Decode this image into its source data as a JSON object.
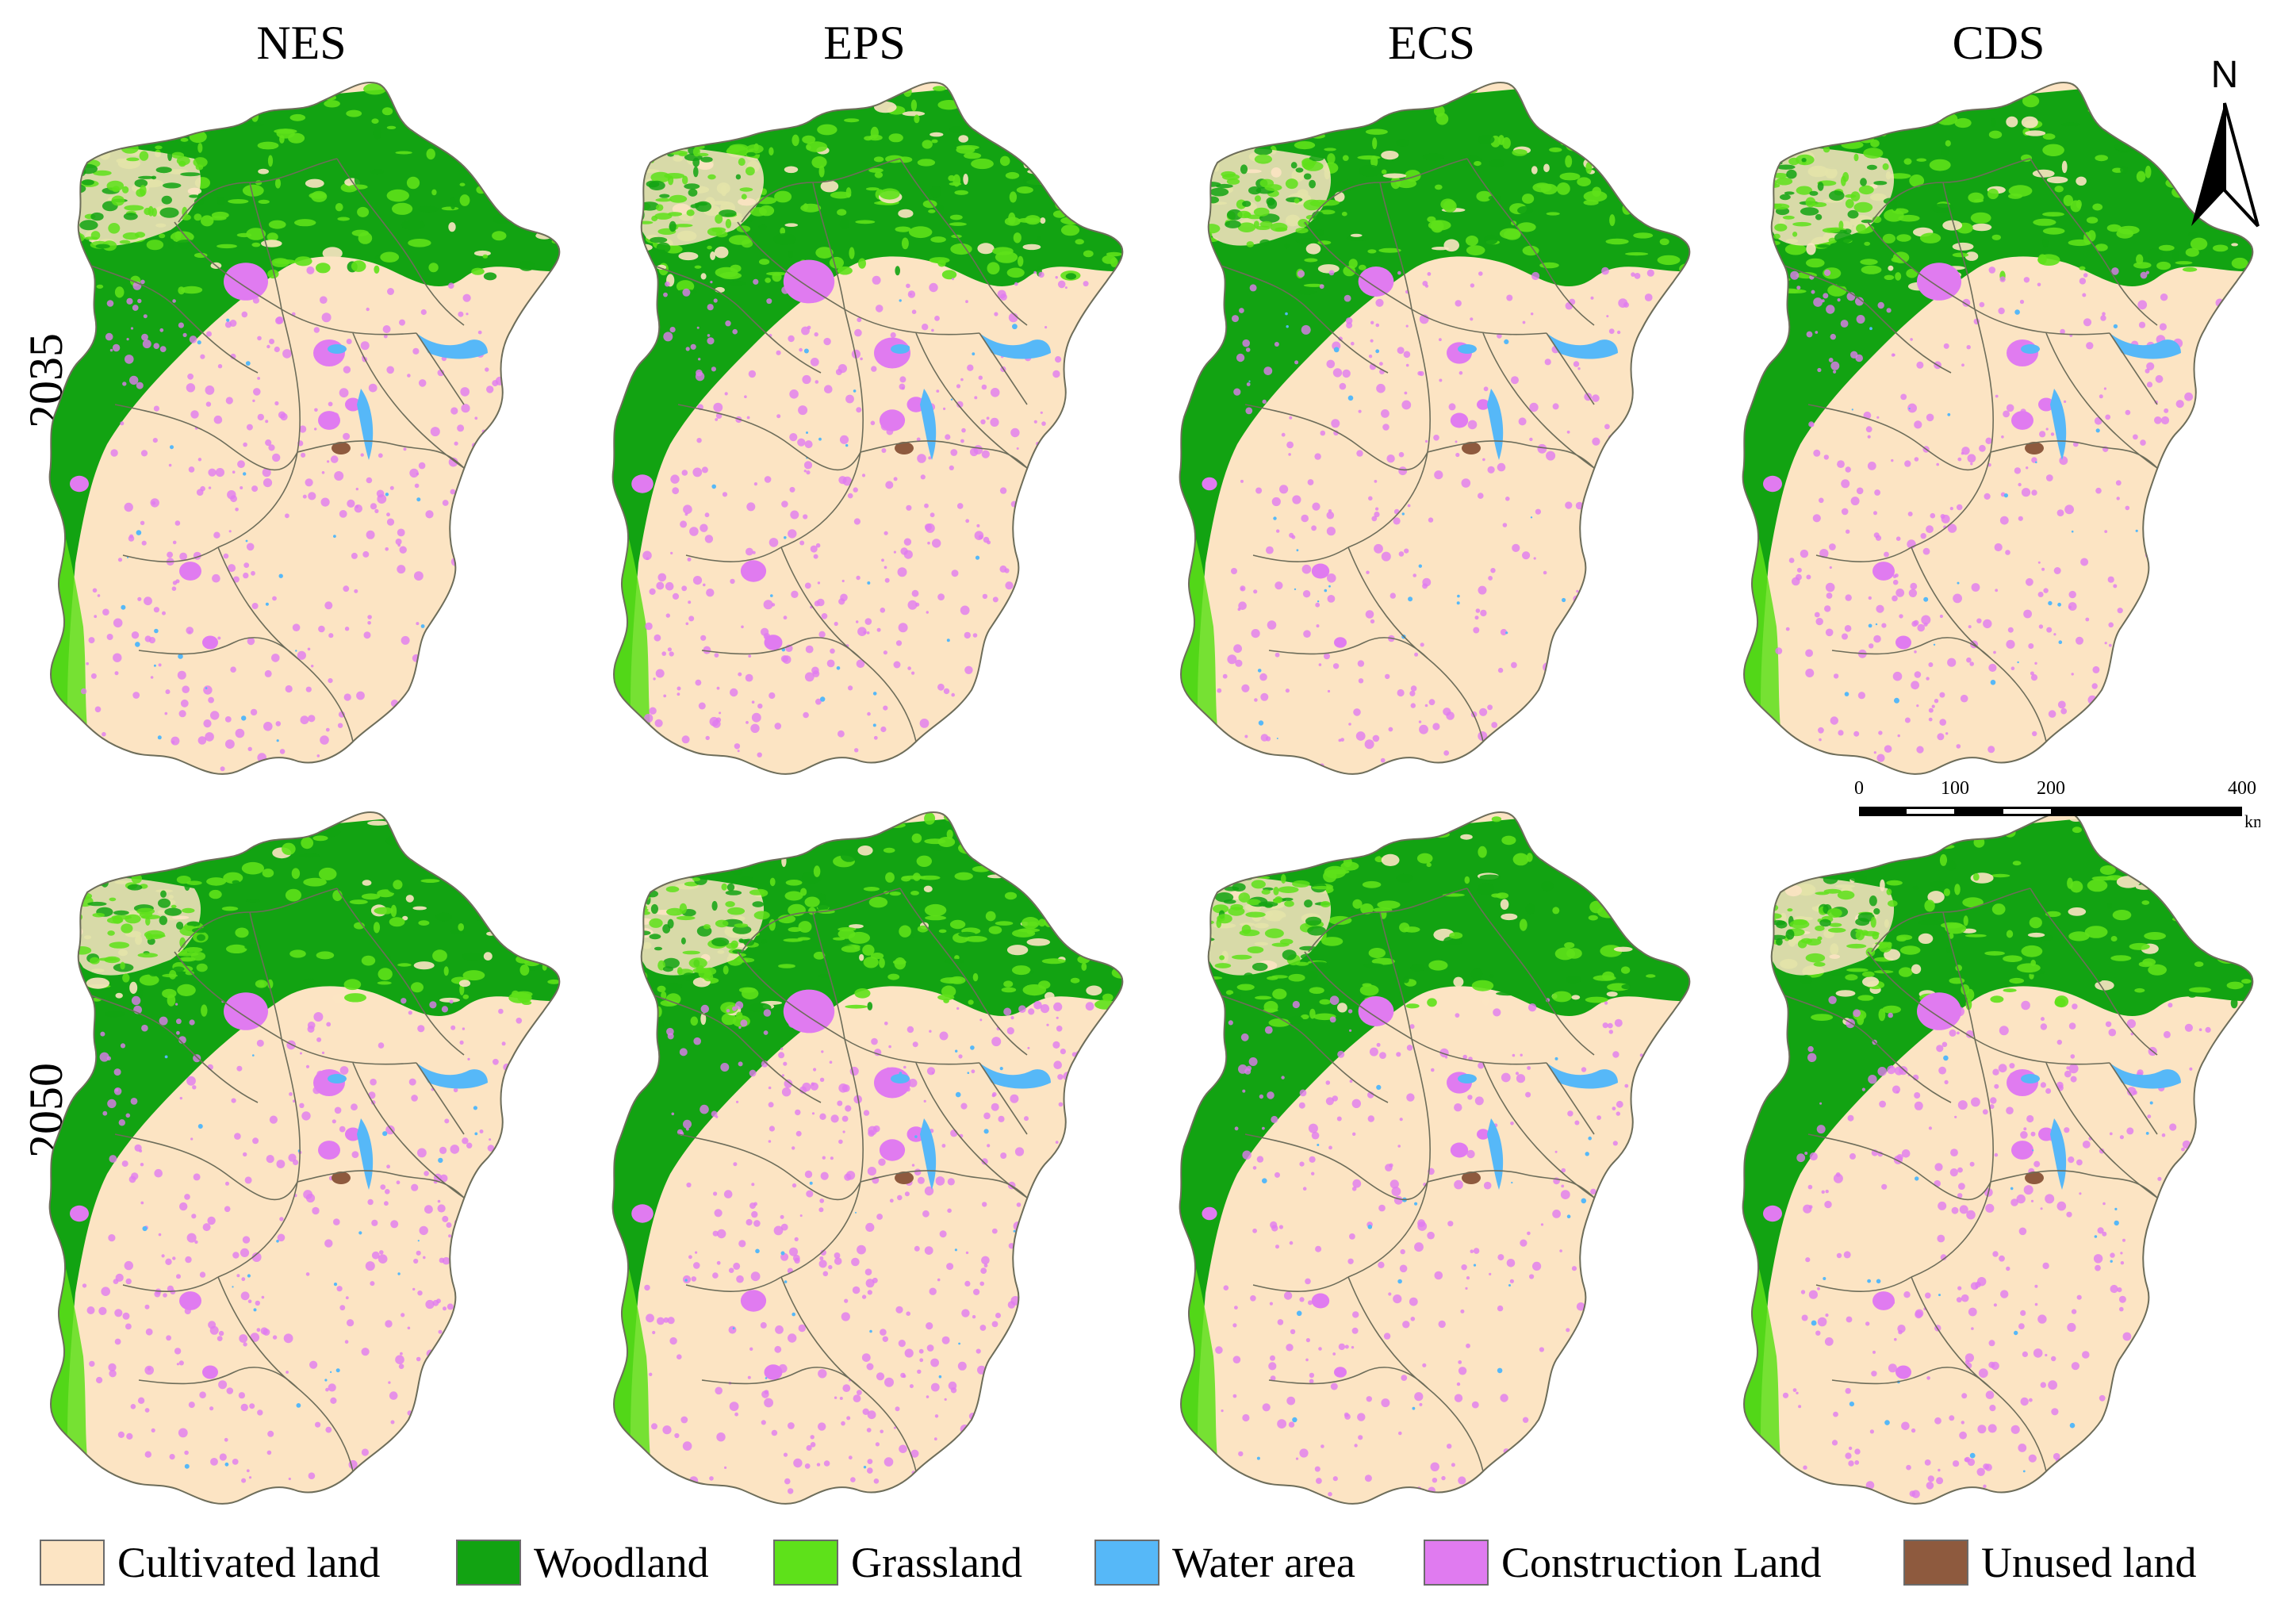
{
  "scenarios": [
    "NES",
    "EPS",
    "ECS",
    "CDS"
  ],
  "years": [
    "2035",
    "2050"
  ],
  "legend": [
    {
      "label": "Cultivated land",
      "color": "#FCE4C3"
    },
    {
      "label": "Woodland",
      "color": "#12A312"
    },
    {
      "label": "Grassland",
      "color": "#5EE11A"
    },
    {
      "label": "Water area",
      "color": "#56B8F8"
    },
    {
      "label": "Construction Land",
      "color": "#E07BF0"
    },
    {
      "label": "Unused land",
      "color": "#8E5A3E"
    }
  ],
  "north_arrow": {
    "label": "N"
  },
  "scale_bar": {
    "ticks": [
      "0",
      "100",
      "200",
      "400"
    ],
    "unit": "km"
  }
}
